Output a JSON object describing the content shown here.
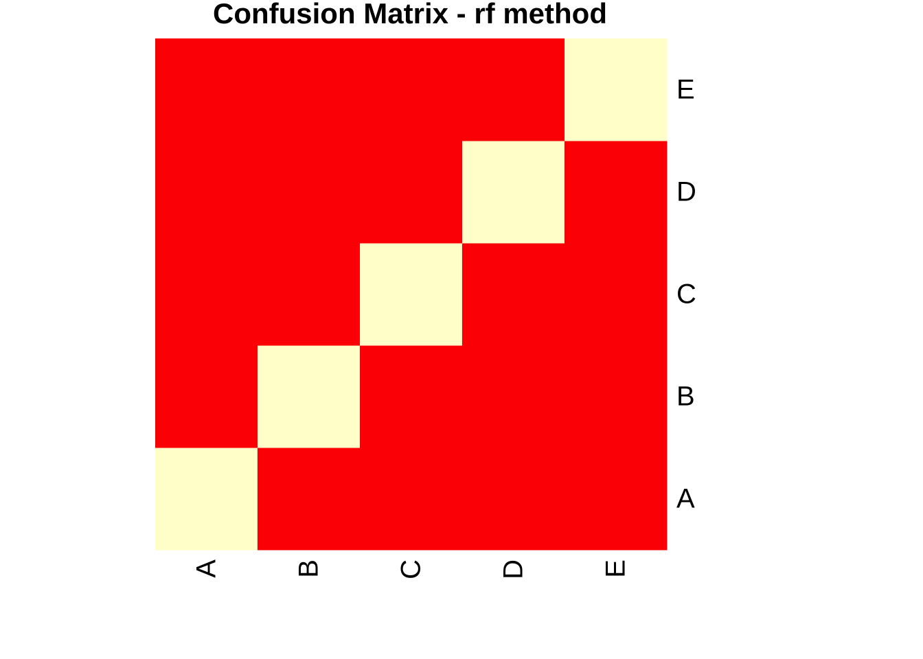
{
  "chart_data": {
    "type": "heatmap",
    "title": "Confusion Matrix - rf method",
    "xlabel": "",
    "ylabel": "",
    "x_categories": [
      "A",
      "B",
      "C",
      "D",
      "E"
    ],
    "y_categories": [
      "A",
      "B",
      "C",
      "D",
      "E"
    ],
    "values": [
      [
        1,
        0,
        0,
        0,
        0
      ],
      [
        0,
        1,
        0,
        0,
        0
      ],
      [
        0,
        0,
        1,
        0,
        0
      ],
      [
        0,
        0,
        0,
        1,
        0
      ],
      [
        0,
        0,
        0,
        0,
        1
      ]
    ],
    "value_range": [
      0,
      1
    ],
    "low_color": "#FA0006",
    "high_color": "#FFFDC8",
    "grid": false,
    "legend": "none"
  }
}
